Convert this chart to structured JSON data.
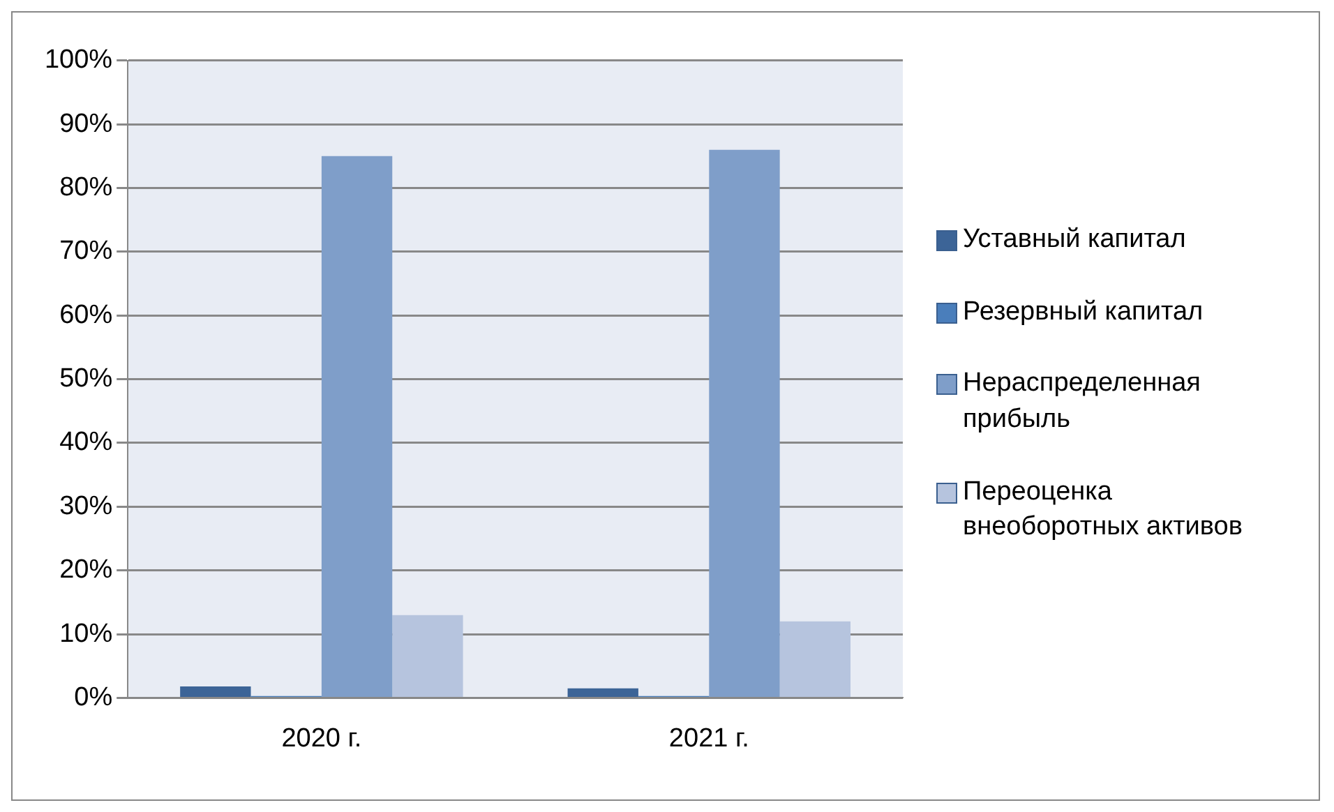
{
  "chart_data": {
    "type": "bar",
    "categories": [
      "2020 г.",
      "2021 г."
    ],
    "series": [
      {
        "name": "Уставный капитал",
        "color": "#3c6497",
        "values": [
          1.8,
          1.5
        ]
      },
      {
        "name": "Резервный капитал",
        "color": "#4a7ebb",
        "values": [
          0.3,
          0.3
        ]
      },
      {
        "name": "Нераспределенная прибыль",
        "color": "#7f9ec9",
        "values": [
          85,
          86
        ]
      },
      {
        "name": "Переоценка внеоборотных активов",
        "color": "#b6c4de",
        "values": [
          13,
          12
        ]
      }
    ],
    "ylim": [
      0,
      100
    ],
    "yticks": [
      {
        "value": 0,
        "label": "0%"
      },
      {
        "value": 10,
        "label": "10%"
      },
      {
        "value": 20,
        "label": "20%"
      },
      {
        "value": 30,
        "label": "30%"
      },
      {
        "value": 40,
        "label": "40%"
      },
      {
        "value": 50,
        "label": "50%"
      },
      {
        "value": 60,
        "label": "60%"
      },
      {
        "value": 70,
        "label": "70%"
      },
      {
        "value": 80,
        "label": "80%"
      },
      {
        "value": 90,
        "label": "90%"
      },
      {
        "value": 100,
        "label": "100%"
      }
    ],
    "grid": "y",
    "legend": "right"
  }
}
